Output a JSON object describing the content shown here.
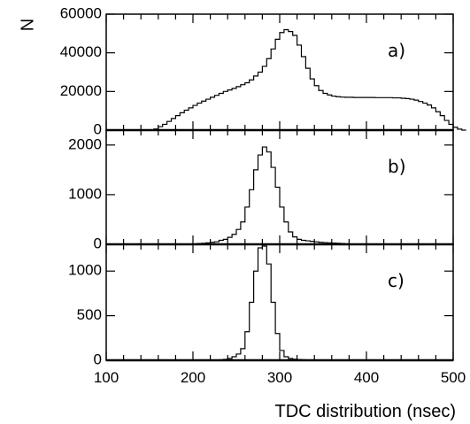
{
  "chart_data": {
    "type": "histogram",
    "xlabel": "TDC distribution (nsec)",
    "ylabel": "N",
    "xlim": [
      100,
      500
    ],
    "x_ticks": [
      100,
      200,
      300,
      400,
      500
    ],
    "bin_width_nsec": 5,
    "panels": [
      {
        "label": "a)",
        "ylim": [
          0,
          60000
        ],
        "y_ticks": [
          0,
          20000,
          40000,
          60000
        ],
        "bin_start": 150,
        "values": [
          0,
          600,
          1800,
          3000,
          4500,
          6000,
          7500,
          9000,
          10300,
          11500,
          12800,
          14000,
          15000,
          16000,
          17000,
          18000,
          19000,
          20000,
          20800,
          21600,
          22500,
          23500,
          24500,
          26000,
          28000,
          30000,
          33000,
          37000,
          42000,
          47000,
          50500,
          52000,
          51000,
          49000,
          44000,
          38000,
          32000,
          26500,
          23000,
          20500,
          19000,
          18200,
          17600,
          17300,
          17100,
          17000,
          17000,
          16900,
          16900,
          16900,
          16900,
          16900,
          16800,
          16800,
          16800,
          16800,
          16700,
          16700,
          16500,
          16300,
          16000,
          15500,
          14800,
          14000,
          13000,
          11500,
          9500,
          7500,
          5000,
          3000,
          1500,
          500,
          0
        ]
      },
      {
        "label": "b)",
        "ylim": [
          0,
          2300
        ],
        "y_ticks": [
          0,
          1000,
          2000
        ],
        "bin_start": 200,
        "values": [
          10,
          15,
          20,
          30,
          40,
          50,
          80,
          100,
          140,
          200,
          300,
          450,
          750,
          1100,
          1500,
          1800,
          1960,
          1860,
          1550,
          1150,
          750,
          450,
          250,
          150,
          100,
          80,
          70,
          60,
          50,
          40,
          35,
          30,
          25,
          20,
          15,
          10
        ]
      },
      {
        "label": "c)",
        "ylim": [
          0,
          1300
        ],
        "y_ticks": [
          0,
          500,
          1000
        ],
        "bin_start": 230,
        "values": [
          5,
          10,
          20,
          40,
          70,
          130,
          320,
          650,
          1000,
          1260,
          1280,
          1080,
          650,
          300,
          110,
          40,
          20,
          12,
          8,
          5
        ]
      }
    ]
  }
}
